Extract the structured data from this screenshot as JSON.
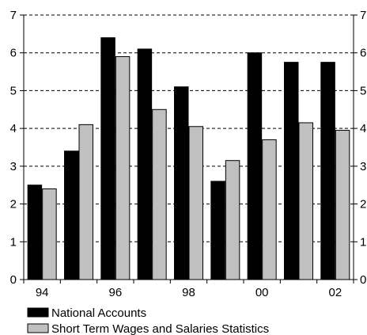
{
  "chart_data": {
    "type": "bar",
    "categories": [
      "94",
      "",
      "96",
      "",
      "98",
      "",
      "00",
      "",
      "02"
    ],
    "series": [
      {
        "name": "National Accounts",
        "color": "#000000",
        "values": [
          2.5,
          3.4,
          6.4,
          6.1,
          5.1,
          2.6,
          6.0,
          5.75,
          5.75
        ]
      },
      {
        "name": "Short Term Wages and Salaries Statistics",
        "color": "#c0c0c0",
        "values": [
          2.4,
          4.1,
          5.9,
          4.5,
          4.05,
          3.15,
          3.7,
          4.15,
          3.95
        ]
      }
    ],
    "title": "",
    "xlabel": "",
    "ylabel": "",
    "ylim": [
      0,
      7
    ],
    "yticks": [
      "0",
      "1",
      "2",
      "3",
      "4",
      "5",
      "6",
      "7"
    ],
    "grid": "horizontal-dashed",
    "legend_position": "bottom-left",
    "right_axis_mirror": true
  }
}
